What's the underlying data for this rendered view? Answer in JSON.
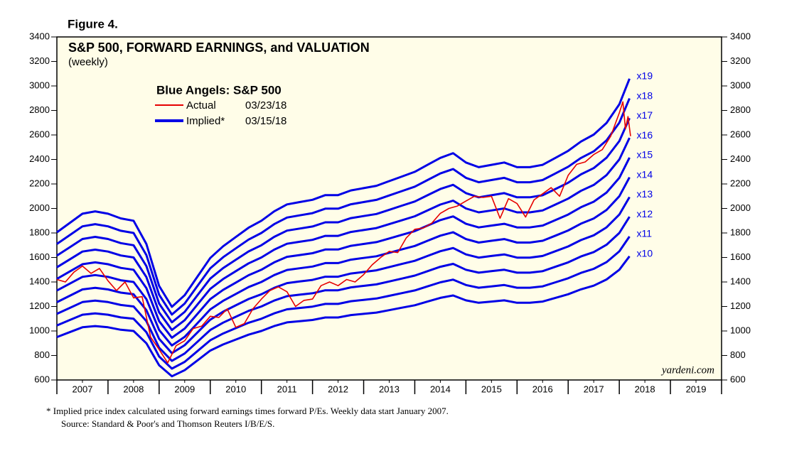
{
  "figure_label": "Figure 4.",
  "chart_data": {
    "type": "line",
    "title": "S&P 500, FORWARD EARNINGS, and VALUATION",
    "subtitle": "(weekly)",
    "legend_title": "Blue Angels: S&P 500",
    "implied_legend": {
      "name": "Implied*",
      "date": "03/15/18",
      "color": "#0000e6"
    },
    "source_mark": "yardeni.com",
    "xlim": [
      2007,
      2020
    ],
    "xticks": [
      {
        "value": 2007.5,
        "label": "2007"
      },
      {
        "value": 2008.5,
        "label": "2008"
      },
      {
        "value": 2009.5,
        "label": "2009"
      },
      {
        "value": 2010.5,
        "label": "2010"
      },
      {
        "value": 2011.5,
        "label": "2011"
      },
      {
        "value": 2012.5,
        "label": "2012"
      },
      {
        "value": 2013.5,
        "label": "2013"
      },
      {
        "value": 2014.5,
        "label": "2014"
      },
      {
        "value": 2015.5,
        "label": "2015"
      },
      {
        "value": 2016.5,
        "label": "2016"
      },
      {
        "value": 2017.5,
        "label": "2017"
      },
      {
        "value": 2018.5,
        "label": "2018"
      },
      {
        "value": 2019.5,
        "label": "2019"
      }
    ],
    "ylim": [
      600,
      3400
    ],
    "yticks": [
      600,
      800,
      1000,
      1200,
      1400,
      1600,
      1800,
      2000,
      2200,
      2400,
      2600,
      2800,
      3000,
      3200,
      3400
    ],
    "x": [
      2007,
      2007.25,
      2007.5,
      2007.75,
      2008,
      2008.25,
      2008.5,
      2008.75,
      2009,
      2009.25,
      2009.5,
      2009.75,
      2010,
      2010.25,
      2010.5,
      2010.75,
      2011,
      2011.25,
      2011.5,
      2011.75,
      2012,
      2012.25,
      2012.5,
      2012.75,
      2013,
      2013.25,
      2013.5,
      2013.75,
      2014,
      2014.25,
      2014.5,
      2014.75,
      2015,
      2015.25,
      2015.5,
      2015.75,
      2016,
      2016.25,
      2016.5,
      2016.75,
      2017,
      2017.25,
      2017.5,
      2017.75,
      2018,
      2018.2
    ],
    "series": [
      {
        "name": "x10",
        "color": "#0000e6",
        "values": [
          950,
          990,
          1030,
          1040,
          1030,
          1010,
          1000,
          900,
          720,
          630,
          680,
          760,
          840,
          890,
          930,
          970,
          1000,
          1040,
          1070,
          1080,
          1090,
          1110,
          1110,
          1130,
          1140,
          1150,
          1170,
          1190,
          1210,
          1240,
          1270,
          1290,
          1250,
          1230,
          1240,
          1250,
          1230,
          1230,
          1240,
          1270,
          1300,
          1340,
          1370,
          1420,
          1500,
          1610
        ]
      },
      {
        "name": "x11",
        "color": "#0000e6",
        "values": [
          1045,
          1089,
          1133,
          1144,
          1133,
          1111,
          1100,
          990,
          792,
          693,
          748,
          836,
          924,
          979,
          1023,
          1067,
          1100,
          1144,
          1177,
          1188,
          1199,
          1221,
          1221,
          1243,
          1254,
          1265,
          1287,
          1309,
          1331,
          1364,
          1397,
          1419,
          1375,
          1353,
          1364,
          1375,
          1353,
          1353,
          1364,
          1397,
          1430,
          1474,
          1507,
          1562,
          1650,
          1771
        ]
      },
      {
        "name": "x12",
        "color": "#0000e6",
        "values": [
          1140,
          1188,
          1236,
          1248,
          1236,
          1212,
          1200,
          1080,
          864,
          756,
          816,
          912,
          1008,
          1068,
          1116,
          1164,
          1200,
          1248,
          1284,
          1296,
          1308,
          1332,
          1332,
          1356,
          1368,
          1380,
          1404,
          1428,
          1452,
          1488,
          1524,
          1548,
          1500,
          1476,
          1488,
          1500,
          1476,
          1476,
          1488,
          1524,
          1560,
          1608,
          1644,
          1704,
          1800,
          1932
        ]
      },
      {
        "name": "x13",
        "color": "#0000e6",
        "values": [
          1235,
          1287,
          1339,
          1352,
          1339,
          1313,
          1300,
          1170,
          936,
          819,
          884,
          988,
          1092,
          1157,
          1209,
          1261,
          1300,
          1352,
          1391,
          1404,
          1417,
          1443,
          1443,
          1469,
          1482,
          1495,
          1521,
          1547,
          1573,
          1612,
          1651,
          1677,
          1625,
          1599,
          1612,
          1625,
          1599,
          1599,
          1612,
          1651,
          1690,
          1742,
          1781,
          1846,
          1950,
          2093
        ]
      },
      {
        "name": "x14",
        "color": "#0000e6",
        "values": [
          1330,
          1386,
          1442,
          1456,
          1442,
          1414,
          1400,
          1260,
          1008,
          882,
          952,
          1064,
          1176,
          1246,
          1302,
          1358,
          1400,
          1456,
          1498,
          1512,
          1526,
          1554,
          1554,
          1582,
          1596,
          1610,
          1638,
          1666,
          1694,
          1736,
          1778,
          1806,
          1750,
          1722,
          1736,
          1750,
          1722,
          1722,
          1736,
          1778,
          1820,
          1876,
          1918,
          1988,
          2100,
          2254
        ]
      },
      {
        "name": "x15",
        "color": "#0000e6",
        "values": [
          1425,
          1485,
          1545,
          1560,
          1545,
          1515,
          1500,
          1350,
          1080,
          945,
          1020,
          1140,
          1260,
          1335,
          1395,
          1455,
          1500,
          1560,
          1605,
          1620,
          1635,
          1665,
          1665,
          1695,
          1710,
          1725,
          1755,
          1785,
          1815,
          1860,
          1905,
          1935,
          1875,
          1845,
          1860,
          1875,
          1845,
          1845,
          1860,
          1905,
          1950,
          2010,
          2055,
          2130,
          2250,
          2415
        ]
      },
      {
        "name": "x16",
        "color": "#0000e6",
        "values": [
          1520,
          1584,
          1648,
          1664,
          1648,
          1616,
          1600,
          1440,
          1152,
          1008,
          1088,
          1216,
          1344,
          1424,
          1488,
          1552,
          1600,
          1664,
          1712,
          1728,
          1744,
          1776,
          1776,
          1808,
          1824,
          1840,
          1872,
          1904,
          1936,
          1984,
          2032,
          2064,
          2000,
          1968,
          1984,
          2000,
          1968,
          1968,
          1984,
          2032,
          2080,
          2144,
          2192,
          2272,
          2400,
          2576
        ]
      },
      {
        "name": "x17",
        "color": "#0000e6",
        "values": [
          1615,
          1683,
          1751,
          1768,
          1751,
          1717,
          1700,
          1530,
          1224,
          1071,
          1156,
          1292,
          1428,
          1513,
          1581,
          1649,
          1700,
          1768,
          1819,
          1836,
          1853,
          1887,
          1887,
          1921,
          1938,
          1955,
          1989,
          2023,
          2057,
          2108,
          2159,
          2193,
          2125,
          2091,
          2108,
          2125,
          2091,
          2091,
          2108,
          2159,
          2210,
          2278,
          2329,
          2414,
          2550,
          2737
        ]
      },
      {
        "name": "x18",
        "color": "#0000e6",
        "values": [
          1710,
          1782,
          1854,
          1872,
          1854,
          1818,
          1800,
          1620,
          1296,
          1134,
          1224,
          1368,
          1512,
          1602,
          1674,
          1746,
          1800,
          1872,
          1926,
          1944,
          1962,
          1998,
          1998,
          2034,
          2052,
          2070,
          2106,
          2142,
          2178,
          2232,
          2286,
          2322,
          2250,
          2214,
          2232,
          2250,
          2214,
          2214,
          2232,
          2286,
          2340,
          2412,
          2466,
          2556,
          2700,
          2898
        ]
      },
      {
        "name": "x19",
        "color": "#0000e6",
        "values": [
          1805,
          1881,
          1957,
          1976,
          1957,
          1919,
          1900,
          1710,
          1368,
          1197,
          1292,
          1444,
          1596,
          1691,
          1767,
          1843,
          1900,
          1976,
          2033,
          2052,
          2071,
          2109,
          2109,
          2147,
          2166,
          2185,
          2223,
          2261,
          2299,
          2356,
          2413,
          2451,
          2375,
          2337,
          2356,
          2375,
          2337,
          2337,
          2356,
          2413,
          2470,
          2546,
          2603,
          2698,
          2850,
          3059
        ]
      },
      {
        "name": "Actual",
        "date": "03/23/18",
        "color": "#e60000",
        "x": [
          2007,
          2007.167,
          2007.333,
          2007.5,
          2007.667,
          2007.833,
          2008,
          2008.167,
          2008.333,
          2008.5,
          2008.667,
          2008.833,
          2009,
          2009.167,
          2009.333,
          2009.5,
          2009.667,
          2009.833,
          2010,
          2010.167,
          2010.333,
          2010.5,
          2010.667,
          2010.833,
          2011,
          2011.167,
          2011.333,
          2011.5,
          2011.667,
          2011.833,
          2012,
          2012.167,
          2012.333,
          2012.5,
          2012.667,
          2012.833,
          2013,
          2013.167,
          2013.333,
          2013.5,
          2013.667,
          2013.833,
          2014,
          2014.167,
          2014.333,
          2014.5,
          2014.667,
          2014.833,
          2015,
          2015.167,
          2015.333,
          2015.5,
          2015.667,
          2015.833,
          2016,
          2016.167,
          2016.333,
          2016.5,
          2016.667,
          2016.833,
          2017,
          2017.167,
          2017.333,
          2017.5,
          2017.667,
          2017.833,
          2018,
          2018.07,
          2018.12,
          2018.17,
          2018.22
        ],
        "values": [
          1420,
          1400,
          1480,
          1530,
          1470,
          1510,
          1410,
          1330,
          1400,
          1270,
          1280,
          950,
          850,
          740,
          880,
          920,
          1020,
          1040,
          1120,
          1110,
          1180,
          1030,
          1060,
          1180,
          1260,
          1330,
          1360,
          1320,
          1200,
          1250,
          1260,
          1370,
          1400,
          1370,
          1420,
          1400,
          1460,
          1540,
          1600,
          1650,
          1640,
          1760,
          1830,
          1840,
          1880,
          1960,
          2000,
          2020,
          2060,
          2100,
          2090,
          2100,
          1920,
          2080,
          2040,
          1930,
          2070,
          2120,
          2170,
          2100,
          2270,
          2360,
          2380,
          2440,
          2480,
          2590,
          2780,
          2870,
          2650,
          2750,
          2590
        ]
      }
    ]
  },
  "footnote": [
    "*  Implied price index calculated using forward earnings times forward P/Es. Weekly data start January 2007.",
    "Source: Standard & Poor's and Thomson Reuters I/B/E/S."
  ]
}
